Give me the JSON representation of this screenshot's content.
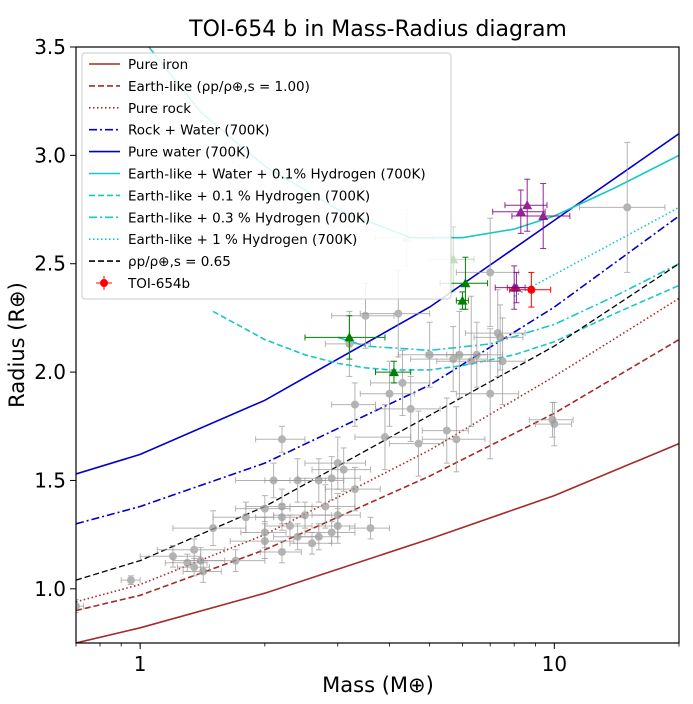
{
  "chart_data": {
    "type": "scatter",
    "title": "TOI-654 b in Mass-Radius diagram",
    "xlabel": "Mass (M⊕)",
    "ylabel": "Radius (R⊕)",
    "xscale": "log",
    "xlim": [
      0.7,
      20
    ],
    "ylim": [
      0.75,
      3.5
    ],
    "xticks": [
      {
        "value": 1,
        "label": "1"
      },
      {
        "value": 10,
        "label": "10"
      }
    ],
    "yticks": [
      1.0,
      1.5,
      2.0,
      2.5,
      3.0,
      3.5
    ],
    "ytick_labels": [
      "1.0",
      "1.5",
      "2.0",
      "2.5",
      "3.0",
      "3.5"
    ],
    "legend_position": "upper-left",
    "legend": [
      {
        "label": "Pure iron",
        "color": "#a52a2a",
        "style": "solid",
        "kind": "line"
      },
      {
        "label": "Earth-like (ρp/ρ⊕,s = 1.00)",
        "color": "#a52a2a",
        "style": "dashed",
        "kind": "line"
      },
      {
        "label": "Pure rock",
        "color": "#a52a2a",
        "style": "dotted",
        "kind": "line"
      },
      {
        "label": "Rock + Water (700K)",
        "color": "#0000cd",
        "style": "dashdot",
        "kind": "line"
      },
      {
        "label": "Pure water (700K)",
        "color": "#0000cd",
        "style": "solid",
        "kind": "line"
      },
      {
        "label": "Earth-like + Water + 0.1% Hydrogen (700K)",
        "color": "#17c8c8",
        "style": "solid",
        "kind": "line"
      },
      {
        "label": "Earth-like + 0.1 % Hydrogen (700K)",
        "color": "#17c8c8",
        "style": "dashed",
        "kind": "line"
      },
      {
        "label": "Earth-like + 0.3 % Hydrogen (700K)",
        "color": "#17c8c8",
        "style": "dashdot",
        "kind": "line"
      },
      {
        "label": "Earth-like + 1 % Hydrogen (700K)",
        "color": "#17c8c8",
        "style": "dotted",
        "kind": "line"
      },
      {
        "label": "ρp/ρ⊕,s = 0.65",
        "color": "#000000",
        "style": "dashed",
        "kind": "line"
      },
      {
        "label": "TOI-654b",
        "color": "#ff0000",
        "style": "errorbar",
        "kind": "point"
      }
    ],
    "curves": [
      {
        "name": "Pure iron",
        "color": "#a52a2a",
        "style": "solid",
        "width": 1.6,
        "points": [
          [
            0.7,
            0.75
          ],
          [
            1,
            0.82
          ],
          [
            2,
            0.98
          ],
          [
            5,
            1.23
          ],
          [
            10,
            1.43
          ],
          [
            20,
            1.67
          ]
        ]
      },
      {
        "name": "Earth-like (ρp/ρ⊕,s = 1.00)",
        "color": "#a52a2a",
        "style": "dashed",
        "width": 1.6,
        "points": [
          [
            0.7,
            0.9
          ],
          [
            1,
            0.97
          ],
          [
            2,
            1.18
          ],
          [
            5,
            1.52
          ],
          [
            10,
            1.81
          ],
          [
            20,
            2.15
          ]
        ]
      },
      {
        "name": "Pure rock",
        "color": "#a52a2a",
        "style": "dotted",
        "width": 1.6,
        "points": [
          [
            0.7,
            0.94
          ],
          [
            1,
            1.02
          ],
          [
            2,
            1.25
          ],
          [
            5,
            1.64
          ],
          [
            10,
            1.98
          ],
          [
            20,
            2.34
          ]
        ]
      },
      {
        "name": "Rock + Water (700K)",
        "color": "#0000cd",
        "style": "dashdot",
        "width": 1.6,
        "points": [
          [
            0.7,
            1.3
          ],
          [
            1,
            1.38
          ],
          [
            2,
            1.58
          ],
          [
            5,
            1.94
          ],
          [
            10,
            2.3
          ],
          [
            20,
            2.72
          ]
        ]
      },
      {
        "name": "Pure water (700K)",
        "color": "#0000cd",
        "style": "solid",
        "width": 1.6,
        "points": [
          [
            0.7,
            1.53
          ],
          [
            1,
            1.62
          ],
          [
            2,
            1.87
          ],
          [
            5,
            2.3
          ],
          [
            10,
            2.7
          ],
          [
            20,
            3.1
          ]
        ]
      },
      {
        "name": "Earth-like + Water + 0.1% Hydrogen (700K)",
        "color": "#17c8c8",
        "style": "solid",
        "width": 1.6,
        "points": [
          [
            1.05,
            3.5
          ],
          [
            1.4,
            3.2
          ],
          [
            2,
            2.95
          ],
          [
            3,
            2.75
          ],
          [
            4.5,
            2.62
          ],
          [
            6,
            2.62
          ],
          [
            8,
            2.66
          ],
          [
            10,
            2.72
          ],
          [
            14,
            2.85
          ],
          [
            20,
            3.0
          ]
        ]
      },
      {
        "name": "Earth-like + 0.1 % Hydrogen (700K)",
        "color": "#17c8c8",
        "style": "dashed",
        "width": 1.6,
        "points": [
          [
            1.5,
            2.28
          ],
          [
            2,
            2.15
          ],
          [
            2.5,
            2.08
          ],
          [
            3,
            2.04
          ],
          [
            3.5,
            2.02
          ],
          [
            4,
            2.01
          ],
          [
            5,
            2.01
          ],
          [
            6,
            2.03
          ],
          [
            8,
            2.08
          ],
          [
            10,
            2.14
          ],
          [
            14,
            2.27
          ],
          [
            20,
            2.4
          ]
        ]
      },
      {
        "name": "Earth-like + 0.3 % Hydrogen (700K)",
        "color": "#17c8c8",
        "style": "dashdot",
        "width": 1.6,
        "points": [
          [
            3,
            2.16
          ],
          [
            3.5,
            2.12
          ],
          [
            5,
            2.1
          ],
          [
            7,
            2.13
          ],
          [
            10,
            2.22
          ],
          [
            14,
            2.35
          ],
          [
            20,
            2.5
          ]
        ]
      },
      {
        "name": "Earth-like + 1 % Hydrogen (700K)",
        "color": "#17c8c8",
        "style": "dotted",
        "width": 1.6,
        "points": [
          [
            8,
            2.35
          ],
          [
            10,
            2.45
          ],
          [
            14,
            2.6
          ],
          [
            20,
            2.76
          ]
        ]
      },
      {
        "name": "ρp/ρ⊕,s = 0.65",
        "color": "#000000",
        "style": "dashed",
        "width": 1.3,
        "points": [
          [
            0.7,
            1.04
          ],
          [
            1,
            1.13
          ],
          [
            2,
            1.38
          ],
          [
            5,
            1.8
          ],
          [
            10,
            2.12
          ],
          [
            20,
            2.5
          ]
        ]
      }
    ],
    "faint_curves": [
      {
        "color": "#17c8c8",
        "points": [
          [
            1.15,
            3.3
          ],
          [
            1.6,
            3.0
          ],
          [
            2.2,
            2.8
          ],
          [
            3,
            2.68
          ],
          [
            4,
            2.64
          ]
        ]
      }
    ],
    "gray_points": [
      [
        0.7,
        0.92,
        0.03,
        0.03
      ],
      [
        0.95,
        1.04,
        0.05,
        0.02
      ],
      [
        1.2,
        1.15,
        0.2,
        0.05
      ],
      [
        1.3,
        1.12,
        0.15,
        0.04
      ],
      [
        1.35,
        1.1,
        0.12,
        0.04
      ],
      [
        1.35,
        1.18,
        0.25,
        0.05
      ],
      [
        1.4,
        1.13,
        0.2,
        0.06
      ],
      [
        1.42,
        1.08,
        0.15,
        0.05
      ],
      [
        1.5,
        1.28,
        0.3,
        0.08
      ],
      [
        1.7,
        1.13,
        0.3,
        0.05
      ],
      [
        1.8,
        1.33,
        0.3,
        0.07
      ],
      [
        2.0,
        1.37,
        0.3,
        0.06
      ],
      [
        2.0,
        1.22,
        0.35,
        0.08
      ],
      [
        2.0,
        1.26,
        0.25,
        0.07
      ],
      [
        2.1,
        1.5,
        0.4,
        0.08
      ],
      [
        2.2,
        1.69,
        0.3,
        0.06
      ],
      [
        2.2,
        1.17,
        0.25,
        0.05
      ],
      [
        2.2,
        1.38,
        0.4,
        0.08
      ],
      [
        2.2,
        1.33,
        0.3,
        0.06
      ],
      [
        2.3,
        1.29,
        0.3,
        0.05
      ],
      [
        2.4,
        1.24,
        0.3,
        0.06
      ],
      [
        2.4,
        1.5,
        0.4,
        0.1
      ],
      [
        2.5,
        1.34,
        0.4,
        0.06
      ],
      [
        2.6,
        1.21,
        0.3,
        0.05
      ],
      [
        2.7,
        1.5,
        0.4,
        0.1
      ],
      [
        2.7,
        1.24,
        0.3,
        0.06
      ],
      [
        2.8,
        1.38,
        0.5,
        0.1
      ],
      [
        2.9,
        1.26,
        0.4,
        0.05
      ],
      [
        2.9,
        1.51,
        0.5,
        0.1
      ],
      [
        3.0,
        1.34,
        0.4,
        0.1
      ],
      [
        3.0,
        1.58,
        0.5,
        0.12
      ],
      [
        3.0,
        1.29,
        0.3,
        0.08
      ],
      [
        3.1,
        1.55,
        0.5,
        0.1
      ],
      [
        3.2,
        2.13,
        0.4,
        0.15
      ],
      [
        3.3,
        1.85,
        0.4,
        0.1
      ],
      [
        3.3,
        1.46,
        0.5,
        0.1
      ],
      [
        3.5,
        2.26,
        0.6,
        0.15
      ],
      [
        3.6,
        1.28,
        0.4,
        0.05
      ],
      [
        3.9,
        1.7,
        0.6,
        0.15
      ],
      [
        4.0,
        1.9,
        0.6,
        0.15
      ],
      [
        4.2,
        2.27,
        0.8,
        0.2
      ],
      [
        4.3,
        1.95,
        0.7,
        0.15
      ],
      [
        4.5,
        1.83,
        0.8,
        0.15
      ],
      [
        4.7,
        1.67,
        0.7,
        0.15
      ],
      [
        5.0,
        2.08,
        0.8,
        0.15
      ],
      [
        5.5,
        1.73,
        0.7,
        0.15
      ],
      [
        5.7,
        2.06,
        1.2,
        0.15
      ],
      [
        5.8,
        1.69,
        1.0,
        0.15
      ],
      [
        5.9,
        2.08,
        1.0,
        0.2
      ],
      [
        6.3,
        2.05,
        1.1,
        0.3
      ],
      [
        6.5,
        2.08,
        1.0,
        0.15
      ],
      [
        7.0,
        2.46,
        1.2,
        0.25
      ],
      [
        7.0,
        1.9,
        1.2,
        0.3
      ],
      [
        7.3,
        2.18,
        1.2,
        0.2
      ],
      [
        7.4,
        2.16,
        1.0,
        0.15
      ],
      [
        7.5,
        2.05,
        1.0,
        0.2
      ],
      [
        9.9,
        1.78,
        1.2,
        0.08
      ],
      [
        10.0,
        1.76,
        1.0,
        0.1
      ],
      [
        15.0,
        2.76,
        3.5,
        0.3
      ]
    ],
    "faint_green_points": [
      [
        4.4,
        2.62,
        0.7,
        0.13
      ],
      [
        5.7,
        2.52,
        0.7,
        0.15
      ]
    ],
    "green_points": [
      [
        3.2,
        2.16,
        0.7,
        0.1
      ],
      [
        4.1,
        2.0,
        0.4,
        0.05
      ],
      [
        6.0,
        2.33,
        0.2,
        0.04
      ],
      [
        6.1,
        2.41,
        0.8,
        0.12
      ]
    ],
    "purple_points": [
      [
        8.0,
        2.39,
        0.8,
        0.1
      ],
      [
        8.3,
        2.74,
        1.2,
        0.1
      ],
      [
        8.6,
        2.77,
        1.0,
        0.12
      ],
      [
        9.4,
        2.72,
        1.5,
        0.15
      ],
      [
        8.1,
        2.39,
        0.4,
        0.07
      ]
    ],
    "highlight_point": {
      "name": "TOI-654b",
      "x": 8.8,
      "y": 2.38,
      "xerr": 1.0,
      "yerr": 0.08,
      "color": "#ff0000"
    }
  }
}
